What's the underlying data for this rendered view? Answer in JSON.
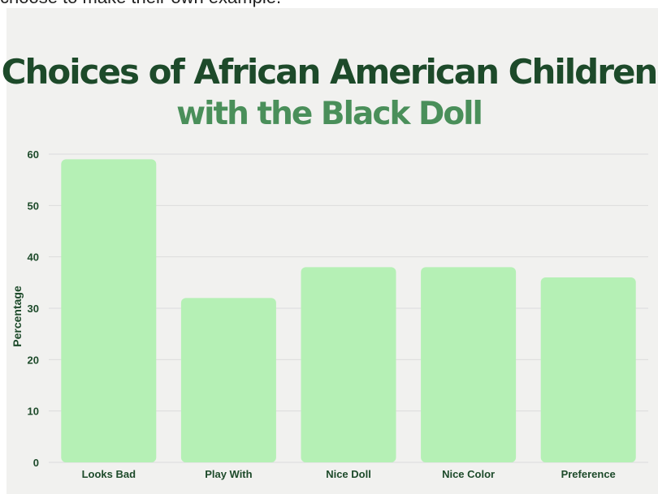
{
  "page": {
    "top_snippet": "choose to make their own example."
  },
  "chart_data": {
    "type": "bar",
    "title": "Choices of African American Children",
    "subtitle": "with the Black Doll",
    "categories": [
      "Looks Bad",
      "Play With",
      "Nice Doll",
      "Nice Color",
      "Preference"
    ],
    "values": [
      59,
      32,
      38,
      38,
      36
    ],
    "xlabel": "",
    "ylabel": "Percentage",
    "ylim": [
      0,
      60
    ],
    "yticks": [
      0,
      10,
      20,
      30,
      40,
      50,
      60
    ],
    "grid": true,
    "legend": "none",
    "colors": {
      "bar": "#b5f0b5",
      "title": "#1d4a2a",
      "subtitle": "#4a8f5a",
      "axis_text": "#1d4a2a",
      "gridline": "#dcdcdc",
      "background": "#f1f1ef"
    }
  }
}
